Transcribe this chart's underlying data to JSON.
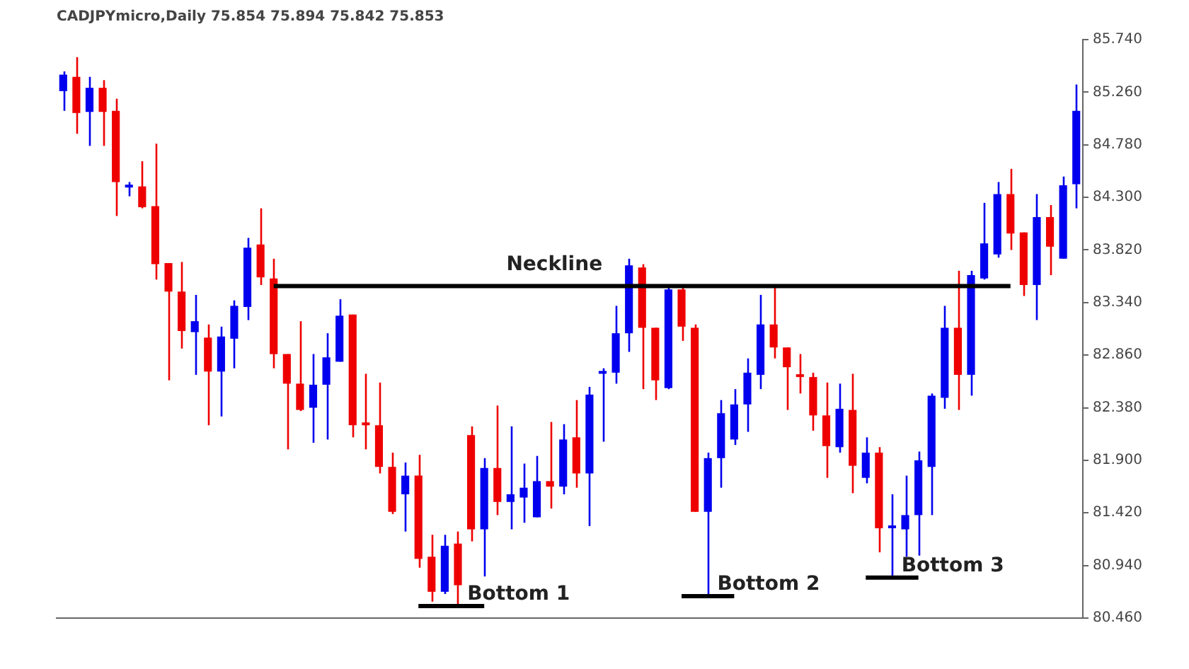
{
  "chart_data": {
    "type": "candlestick",
    "title": "CADJPYmicro,Daily 75.854 75.894 75.842 75.853",
    "categories": [
      null,
      null,
      null,
      null,
      null,
      null,
      null,
      null,
      null,
      null,
      null,
      null,
      null,
      null,
      null,
      null,
      null,
      null,
      null,
      null,
      null,
      null,
      null,
      null,
      null,
      null,
      null,
      null,
      null,
      null,
      null,
      null,
      null,
      null,
      null,
      null,
      null,
      null,
      null,
      null,
      null,
      null,
      null,
      null,
      null,
      null,
      null,
      null,
      null,
      null,
      null,
      null,
      null,
      null,
      null,
      null,
      null,
      null,
      null,
      null,
      null,
      null,
      null,
      null,
      null,
      null,
      null,
      null,
      null,
      null,
      null,
      null,
      null,
      null,
      null,
      null,
      null,
      null
    ],
    "ohlc": [
      [
        85.27,
        85.45,
        85.09,
        85.42
      ],
      [
        85.4,
        85.58,
        84.88,
        85.07
      ],
      [
        85.08,
        85.4,
        84.77,
        85.3
      ],
      [
        85.3,
        85.37,
        84.77,
        85.08
      ],
      [
        85.09,
        85.2,
        84.13,
        84.44
      ],
      [
        84.39,
        84.44,
        84.31,
        84.4
      ],
      [
        84.4,
        84.63,
        84.2,
        84.21
      ],
      [
        84.22,
        84.79,
        83.55,
        83.69
      ],
      [
        83.7,
        83.7,
        82.63,
        83.44
      ],
      [
        83.44,
        83.71,
        82.92,
        83.08
      ],
      [
        83.07,
        83.41,
        82.68,
        83.17
      ],
      [
        83.02,
        83.14,
        82.22,
        82.71
      ],
      [
        82.71,
        83.12,
        82.3,
        83.03
      ],
      [
        83.01,
        83.36,
        82.74,
        83.31
      ],
      [
        83.3,
        83.93,
        83.18,
        83.84
      ],
      [
        83.87,
        84.2,
        83.5,
        83.57
      ],
      [
        83.56,
        83.74,
        82.74,
        82.87
      ],
      [
        82.87,
        82.87,
        82.0,
        82.6
      ],
      [
        82.6,
        83.17,
        82.35,
        82.36
      ],
      [
        82.38,
        82.87,
        82.06,
        82.59
      ],
      [
        82.59,
        83.06,
        82.09,
        82.84
      ],
      [
        82.8,
        83.37,
        82.8,
        83.22
      ],
      [
        83.23,
        83.23,
        82.11,
        82.22
      ],
      [
        82.23,
        82.69,
        82.0,
        82.22
      ],
      [
        82.22,
        82.61,
        81.78,
        81.84
      ],
      [
        81.84,
        81.97,
        81.41,
        81.43
      ],
      [
        81.59,
        81.88,
        81.25,
        81.76
      ],
      [
        81.76,
        81.95,
        80.92,
        81.0
      ],
      [
        81.02,
        81.22,
        80.61,
        80.7
      ],
      [
        80.7,
        81.22,
        80.68,
        81.12
      ],
      [
        81.14,
        81.25,
        80.57,
        80.76
      ],
      [
        82.13,
        82.21,
        81.16,
        81.27
      ],
      [
        81.27,
        81.92,
        80.84,
        81.83
      ],
      [
        81.83,
        82.4,
        81.4,
        81.52
      ],
      [
        81.52,
        82.21,
        81.27,
        81.59
      ],
      [
        81.56,
        81.87,
        81.33,
        81.65
      ],
      [
        81.38,
        81.94,
        81.38,
        81.71
      ],
      [
        81.71,
        82.25,
        81.46,
        81.66
      ],
      [
        81.66,
        82.23,
        81.59,
        82.09
      ],
      [
        82.11,
        82.45,
        81.65,
        81.78
      ],
      [
        81.78,
        82.57,
        81.3,
        82.5
      ],
      [
        82.69,
        82.74,
        82.07,
        82.71
      ],
      [
        82.7,
        83.31,
        82.6,
        83.06
      ],
      [
        83.06,
        83.74,
        82.89,
        83.68
      ],
      [
        83.66,
        83.69,
        82.55,
        83.11
      ],
      [
        83.11,
        83.11,
        82.45,
        82.63
      ],
      [
        82.56,
        83.49,
        82.55,
        83.46
      ],
      [
        83.46,
        83.49,
        82.99,
        83.12
      ],
      [
        83.11,
        83.14,
        81.43,
        81.43
      ],
      [
        81.43,
        81.97,
        80.66,
        81.92
      ],
      [
        81.92,
        82.45,
        81.65,
        82.33
      ],
      [
        82.09,
        82.55,
        82.04,
        82.41
      ],
      [
        82.41,
        82.83,
        82.16,
        82.7
      ],
      [
        82.68,
        83.41,
        82.55,
        83.14
      ],
      [
        83.14,
        83.5,
        82.83,
        82.93
      ],
      [
        82.93,
        82.93,
        82.36,
        82.75
      ],
      [
        82.68,
        82.87,
        82.51,
        82.66
      ],
      [
        82.66,
        82.7,
        82.17,
        82.31
      ],
      [
        82.31,
        82.61,
        81.74,
        82.03
      ],
      [
        82.02,
        82.6,
        81.97,
        82.37
      ],
      [
        82.36,
        82.69,
        81.6,
        81.85
      ],
      [
        81.74,
        82.11,
        81.69,
        81.97
      ],
      [
        81.97,
        82.02,
        81.06,
        81.28
      ],
      [
        81.28,
        81.59,
        80.83,
        81.3
      ],
      [
        81.27,
        81.76,
        81.02,
        81.4
      ],
      [
        81.4,
        81.98,
        81.03,
        81.9
      ],
      [
        81.84,
        82.51,
        81.4,
        82.49
      ],
      [
        82.47,
        83.31,
        82.37,
        83.11
      ],
      [
        83.11,
        83.63,
        82.36,
        82.68
      ],
      [
        82.68,
        83.63,
        82.49,
        83.59
      ],
      [
        83.56,
        84.25,
        83.55,
        83.88
      ],
      [
        83.78,
        84.44,
        83.75,
        84.33
      ],
      [
        84.33,
        84.56,
        83.82,
        83.97
      ],
      [
        83.98,
        83.98,
        83.4,
        83.5
      ],
      [
        83.5,
        84.33,
        83.18,
        84.12
      ],
      [
        84.12,
        84.23,
        83.59,
        83.85
      ],
      [
        83.74,
        84.49,
        83.74,
        84.41
      ],
      [
        84.42,
        85.33,
        84.2,
        85.09
      ]
    ],
    "colors": [
      "#0000ee",
      "#ee0000",
      "#0000ee",
      "#ee0000",
      "#ee0000",
      "#0000ee",
      "#ee0000",
      "#ee0000",
      "#ee0000",
      "#ee0000",
      "#0000ee",
      "#ee0000",
      "#0000ee",
      "#0000ee",
      "#0000ee",
      "#ee0000",
      "#ee0000",
      "#ee0000",
      "#ee0000",
      "#0000ee",
      "#0000ee",
      "#0000ee",
      "#ee0000",
      "#ee0000",
      "#ee0000",
      "#ee0000",
      "#0000ee",
      "#ee0000",
      "#ee0000",
      "#0000ee",
      "#ee0000",
      "#ee0000",
      "#0000ee",
      "#ee0000",
      "#0000ee",
      "#0000ee",
      "#0000ee",
      "#ee0000",
      "#0000ee",
      "#ee0000",
      "#0000ee",
      "#0000ee",
      "#0000ee",
      "#0000ee",
      "#ee0000",
      "#ee0000",
      "#0000ee",
      "#ee0000",
      "#ee0000",
      "#0000ee",
      "#0000ee",
      "#0000ee",
      "#0000ee",
      "#0000ee",
      "#ee0000",
      "#ee0000",
      "#ee0000",
      "#ee0000",
      "#ee0000",
      "#0000ee",
      "#ee0000",
      "#0000ee",
      "#ee0000",
      "#0000ee",
      "#0000ee",
      "#0000ee",
      "#0000ee",
      "#0000ee",
      "#ee0000",
      "#0000ee",
      "#0000ee",
      "#0000ee",
      "#ee0000",
      "#ee0000",
      "#0000ee",
      "#ee0000",
      "#0000ee",
      "#0000ee"
    ],
    "series": [
      {
        "type": "line",
        "name": "Neckline",
        "color": "#000000",
        "values": [
          null,
          null,
          null,
          null,
          null,
          null,
          null,
          null,
          null,
          null,
          null,
          null,
          null,
          null,
          null,
          null,
          83.49,
          83.49,
          83.49,
          83.49,
          83.49,
          83.49,
          83.49,
          83.49,
          83.49,
          83.49,
          83.49,
          83.49,
          83.49,
          83.49,
          83.49,
          83.49,
          83.49,
          83.49,
          83.49,
          83.49,
          83.49,
          83.49,
          83.49,
          83.49,
          83.49,
          83.49,
          83.49,
          83.49,
          83.49,
          83.49,
          83.49,
          83.49,
          83.49,
          83.49,
          83.49,
          83.49,
          83.49,
          83.49,
          83.49,
          83.49,
          83.49,
          83.49,
          83.49,
          83.49,
          83.49,
          83.49,
          83.49,
          83.49,
          83.49,
          83.49,
          83.49,
          83.49,
          83.49,
          83.49,
          83.49,
          83.49,
          83.49,
          null,
          null,
          null,
          null,
          null
        ]
      },
      {
        "type": "line",
        "name": "Bottom 1",
        "color": "#000000",
        "values": [
          null,
          null,
          null,
          null,
          null,
          null,
          null,
          null,
          null,
          null,
          null,
          null,
          null,
          null,
          null,
          null,
          null,
          null,
          null,
          null,
          null,
          null,
          null,
          null,
          null,
          null,
          null,
          80.57,
          80.57,
          80.57,
          80.57,
          80.57,
          80.57,
          null,
          null,
          null,
          null,
          null,
          null,
          null,
          null,
          null,
          null,
          null,
          null,
          null,
          null,
          null,
          null,
          null,
          null,
          null,
          null,
          null,
          null,
          null,
          null,
          null,
          null,
          null,
          null,
          null,
          null,
          null,
          null,
          null,
          null,
          null,
          null,
          null,
          null,
          null,
          null,
          null,
          null,
          null,
          null,
          null
        ]
      },
      {
        "type": "line",
        "name": "Bottom 2",
        "color": "#000000",
        "values": [
          null,
          null,
          null,
          null,
          null,
          null,
          null,
          null,
          null,
          null,
          null,
          null,
          null,
          null,
          null,
          null,
          null,
          null,
          null,
          null,
          null,
          null,
          null,
          null,
          null,
          null,
          null,
          null,
          null,
          null,
          null,
          null,
          null,
          null,
          null,
          null,
          null,
          null,
          null,
          null,
          null,
          null,
          null,
          null,
          null,
          null,
          null,
          80.66,
          80.66,
          80.66,
          80.66,
          80.66,
          null,
          null,
          null,
          null,
          null,
          null,
          null,
          null,
          null,
          null,
          null,
          null,
          null,
          null,
          null,
          null,
          null,
          null,
          null,
          null,
          null,
          null,
          null,
          null,
          null,
          null
        ]
      },
      {
        "type": "line",
        "name": "Bottom 3",
        "color": "#000000",
        "values": [
          null,
          null,
          null,
          null,
          null,
          null,
          null,
          null,
          null,
          null,
          null,
          null,
          null,
          null,
          null,
          null,
          null,
          null,
          null,
          null,
          null,
          null,
          null,
          null,
          null,
          null,
          null,
          null,
          null,
          null,
          null,
          null,
          null,
          null,
          null,
          null,
          null,
          null,
          null,
          null,
          null,
          null,
          null,
          null,
          null,
          null,
          null,
          null,
          null,
          null,
          null,
          null,
          null,
          null,
          null,
          null,
          null,
          null,
          null,
          null,
          null,
          80.83,
          80.83,
          80.83,
          80.83,
          80.83,
          null,
          null,
          null,
          null,
          null,
          null,
          null,
          null,
          null,
          null,
          null,
          null
        ]
      }
    ],
    "ylim": [
      80.46,
      85.74
    ],
    "yticks": [
      {
        "value": 80.46,
        "label": "80.460"
      },
      {
        "value": 80.94,
        "label": "80.940"
      },
      {
        "value": 81.42,
        "label": "81.420"
      },
      {
        "value": 81.9,
        "label": "81.900"
      },
      {
        "value": 82.38,
        "label": "82.380"
      },
      {
        "value": 82.86,
        "label": "82.860"
      },
      {
        "value": 83.34,
        "label": "83.340"
      },
      {
        "value": 83.82,
        "label": "83.820"
      },
      {
        "value": 84.3,
        "label": "84.300"
      },
      {
        "value": 84.78,
        "label": "84.780"
      },
      {
        "value": 85.26,
        "label": "85.260"
      },
      {
        "value": 85.74,
        "label": "85.740"
      }
    ],
    "tick_labels": "y"
  }
}
